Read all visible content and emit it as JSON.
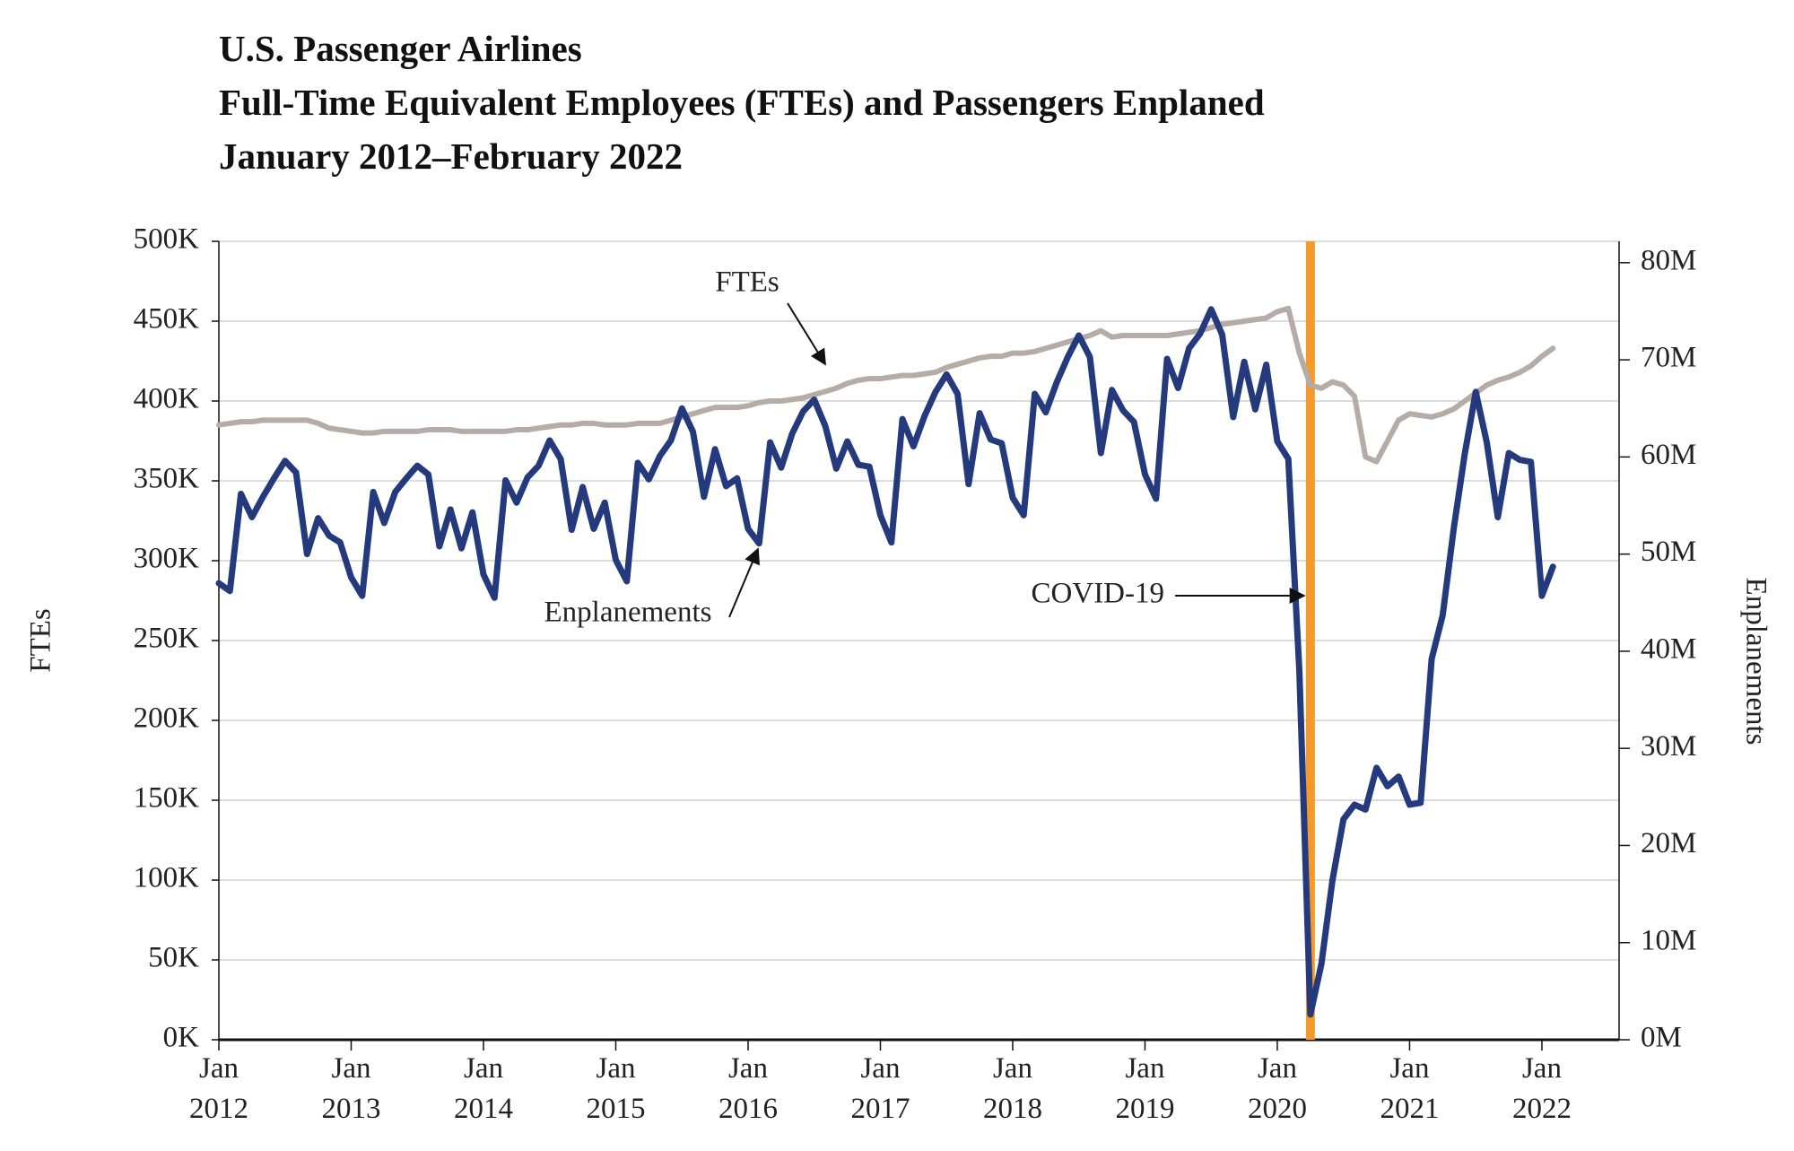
{
  "chart_data": {
    "type": "line",
    "title": [
      "U.S. Passenger Airlines",
      "Full-Time Equivalent Employees (FTEs) and Passengers Enplaned",
      "January 2012–February 2022"
    ],
    "y_label": "FTEs",
    "y2_label": "Enplanements",
    "x": [
      "2012-01",
      "2012-02",
      "2012-03",
      "2012-04",
      "2012-05",
      "2012-06",
      "2012-07",
      "2012-08",
      "2012-09",
      "2012-10",
      "2012-11",
      "2012-12",
      "2013-01",
      "2013-02",
      "2013-03",
      "2013-04",
      "2013-05",
      "2013-06",
      "2013-07",
      "2013-08",
      "2013-09",
      "2013-10",
      "2013-11",
      "2013-12",
      "2014-01",
      "2014-02",
      "2014-03",
      "2014-04",
      "2014-05",
      "2014-06",
      "2014-07",
      "2014-08",
      "2014-09",
      "2014-10",
      "2014-11",
      "2014-12",
      "2015-01",
      "2015-02",
      "2015-03",
      "2015-04",
      "2015-05",
      "2015-06",
      "2015-07",
      "2015-08",
      "2015-09",
      "2015-10",
      "2015-11",
      "2015-12",
      "2016-01",
      "2016-02",
      "2016-03",
      "2016-04",
      "2016-05",
      "2016-06",
      "2016-07",
      "2016-08",
      "2016-09",
      "2016-10",
      "2016-11",
      "2016-12",
      "2017-01",
      "2017-02",
      "2017-03",
      "2017-04",
      "2017-05",
      "2017-06",
      "2017-07",
      "2017-08",
      "2017-09",
      "2017-10",
      "2017-11",
      "2017-12",
      "2018-01",
      "2018-02",
      "2018-03",
      "2018-04",
      "2018-05",
      "2018-06",
      "2018-07",
      "2018-08",
      "2018-09",
      "2018-10",
      "2018-11",
      "2018-12",
      "2019-01",
      "2019-02",
      "2019-03",
      "2019-04",
      "2019-05",
      "2019-06",
      "2019-07",
      "2019-08",
      "2019-09",
      "2019-10",
      "2019-11",
      "2019-12",
      "2020-01",
      "2020-02",
      "2020-03",
      "2020-04",
      "2020-05",
      "2020-06",
      "2020-07",
      "2020-08",
      "2020-09",
      "2020-10",
      "2020-11",
      "2020-12",
      "2021-01",
      "2021-02",
      "2021-03",
      "2021-04",
      "2021-05",
      "2021-06",
      "2021-07",
      "2021-08",
      "2021-09",
      "2021-10",
      "2021-11",
      "2021-12",
      "2022-01",
      "2022-02"
    ],
    "series": [
      {
        "name": "FTEs",
        "color": "#b5aca7",
        "axis": "y",
        "values": [
          385,
          386,
          387,
          387,
          388,
          388,
          388,
          388,
          388,
          386,
          383,
          382,
          381,
          380,
          380,
          381,
          381,
          381,
          381,
          382,
          382,
          382,
          381,
          381,
          381,
          381,
          381,
          382,
          382,
          383,
          384,
          385,
          385,
          386,
          386,
          385,
          385,
          385,
          386,
          386,
          386,
          388,
          390,
          392,
          394,
          396,
          396,
          396,
          397,
          399,
          400,
          400,
          401,
          402,
          404,
          406,
          408,
          411,
          413,
          414,
          414,
          415,
          416,
          416,
          417,
          418,
          421,
          423,
          425,
          427,
          428,
          428,
          430,
          430,
          431,
          433,
          435,
          437,
          439,
          441,
          444,
          440,
          441,
          441,
          441,
          441,
          441,
          442,
          443,
          444,
          446,
          448,
          449,
          450,
          451,
          452,
          456,
          458,
          430,
          410,
          408,
          412,
          410,
          403,
          365,
          362,
          375,
          388,
          392,
          391,
          390,
          392,
          395,
          400,
          405,
          410,
          413,
          415,
          418,
          422,
          428,
          433
        ]
      },
      {
        "name": "Enplanements",
        "color": "#243a7c",
        "axis": "y2",
        "values": [
          47.0,
          46.2,
          56.2,
          53.8,
          55.9,
          57.8,
          59.6,
          58.4,
          50.0,
          53.7,
          51.9,
          51.2,
          47.6,
          45.7,
          56.4,
          53.2,
          56.4,
          57.8,
          59.1,
          58.2,
          50.8,
          54.6,
          50.6,
          54.3,
          47.9,
          45.5,
          57.6,
          55.3,
          57.9,
          59.1,
          61.7,
          59.8,
          52.5,
          56.9,
          52.6,
          55.3,
          49.4,
          47.2,
          59.4,
          57.7,
          60.1,
          61.7,
          65.0,
          62.6,
          55.9,
          60.8,
          57.0,
          57.8,
          52.6,
          51.1,
          61.5,
          58.9,
          62.4,
          64.7,
          65.9,
          63.2,
          58.8,
          61.6,
          59.2,
          59.0,
          54.0,
          51.2,
          63.9,
          61.1,
          64.2,
          66.7,
          68.5,
          66.5,
          57.2,
          64.5,
          61.8,
          61.4,
          55.8,
          54.0,
          66.5,
          64.6,
          67.7,
          70.3,
          72.5,
          70.3,
          60.4,
          66.9,
          64.8,
          63.6,
          58.2,
          55.7,
          70.1,
          67.1,
          71.2,
          72.7,
          75.2,
          72.6,
          64.1,
          69.8,
          64.9,
          69.5,
          61.6,
          59.8,
          38.0,
          2.6,
          7.8,
          16.4,
          22.7,
          24.2,
          23.7,
          28.0,
          26.1,
          27.1,
          24.2,
          24.4,
          39.2,
          43.7,
          52.6,
          60.3,
          66.7,
          61.5,
          53.8,
          60.4,
          59.7,
          59.5,
          45.7,
          48.7
        ]
      }
    ],
    "xlim": [
      "2012-01",
      "2022-08"
    ],
    "xticks": [
      {
        "value": "2012-01",
        "label": "Jan\n2012"
      },
      {
        "value": "2013-01",
        "label": "Jan\n2013"
      },
      {
        "value": "2014-01",
        "label": "Jan\n2014"
      },
      {
        "value": "2015-01",
        "label": "Jan\n2015"
      },
      {
        "value": "2016-01",
        "label": "Jan\n2016"
      },
      {
        "value": "2017-01",
        "label": "Jan\n2017"
      },
      {
        "value": "2018-01",
        "label": "Jan\n2018"
      },
      {
        "value": "2019-01",
        "label": "Jan\n2019"
      },
      {
        "value": "2020-01",
        "label": "Jan\n2020"
      },
      {
        "value": "2021-01",
        "label": "Jan\n2021"
      },
      {
        "value": "2022-01",
        "label": "Jan\n2022"
      }
    ],
    "ylim": [
      0,
      500
    ],
    "yticks": [
      {
        "value": 0,
        "label": "0K"
      },
      {
        "value": 50,
        "label": "50K"
      },
      {
        "value": 100,
        "label": "100K"
      },
      {
        "value": 150,
        "label": "150K"
      },
      {
        "value": 200,
        "label": "200K"
      },
      {
        "value": 250,
        "label": "250K"
      },
      {
        "value": 300,
        "label": "300K"
      },
      {
        "value": 350,
        "label": "350K"
      },
      {
        "value": 400,
        "label": "400K"
      },
      {
        "value": 450,
        "label": "450K"
      },
      {
        "value": 500,
        "label": "500K"
      }
    ],
    "y2lim": [
      0,
      82.2
    ],
    "y2ticks": [
      {
        "value": 0,
        "label": "0M"
      },
      {
        "value": 10,
        "label": "10M"
      },
      {
        "value": 20,
        "label": "20M"
      },
      {
        "value": 30,
        "label": "30M"
      },
      {
        "value": 40,
        "label": "40M"
      },
      {
        "value": 50,
        "label": "50M"
      },
      {
        "value": 60,
        "label": "60M"
      },
      {
        "value": 70,
        "label": "70M"
      },
      {
        "value": 80,
        "label": "80M"
      }
    ],
    "grid": true,
    "annotations": [
      {
        "text": "COVID-19",
        "x": "2020-04",
        "color": "#f39a2a"
      }
    ]
  }
}
